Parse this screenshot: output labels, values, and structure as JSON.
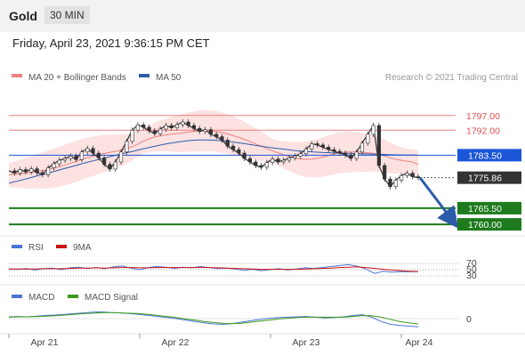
{
  "header": {
    "symbol": "Gold",
    "timeframe": "30 MIN",
    "datetime": "Friday, April 23, 2021 9:36:15 PM CET"
  },
  "credit": "Research © 2021 Trading Central",
  "chart_data": [
    {
      "type": "line",
      "panel": "price",
      "legend": [
        {
          "name": "MA 20 + Bollinger Bands",
          "color": "#f08080"
        },
        {
          "name": "MA 50",
          "color": "#2a5caa"
        }
      ],
      "ylim": [
        1757,
        1806
      ],
      "levels": [
        {
          "value": 1797.0,
          "label": "1797.00",
          "kind": "resistance",
          "color": "#e05050"
        },
        {
          "value": 1792.0,
          "label": "1792.00",
          "kind": "resistance",
          "color": "#e05050"
        },
        {
          "value": 1783.5,
          "label": "1783.50",
          "kind": "pivot",
          "color": "#1a56d6"
        },
        {
          "value": 1775.86,
          "label": "1775.86",
          "kind": "last",
          "color": "#333333"
        },
        {
          "value": 1765.5,
          "label": "1765.50",
          "kind": "support",
          "color": "#1e7b1e"
        },
        {
          "value": 1760.0,
          "label": "1760.00",
          "kind": "support",
          "color": "#1e7b1e"
        }
      ],
      "arrow": {
        "from": 1775.86,
        "to": 1761.5,
        "direction": "down",
        "color": "#2a5caa"
      },
      "series": [
        {
          "name": "price",
          "color": "#333333",
          "values": [
            1778.2,
            1777.4,
            1778.6,
            1777.8,
            1778.9,
            1777.6,
            1776.9,
            1779.2,
            1780.6,
            1781.8,
            1782.4,
            1783.2,
            1782.0,
            1784.6,
            1785.8,
            1784.2,
            1782.6,
            1780.4,
            1778.8,
            1781.2,
            1784.6,
            1788.2,
            1792.0,
            1793.8,
            1793.0,
            1791.8,
            1790.8,
            1792.4,
            1793.6,
            1792.8,
            1793.9,
            1794.8,
            1793.6,
            1792.6,
            1791.6,
            1792.2,
            1790.6,
            1789.8,
            1788.6,
            1786.6,
            1785.4,
            1784.2,
            1782.4,
            1781.2,
            1780.0,
            1779.4,
            1781.0,
            1782.2,
            1781.2,
            1781.8,
            1782.6,
            1783.2,
            1784.0,
            1785.6,
            1787.4,
            1787.0,
            1786.2,
            1785.4,
            1784.8,
            1784.2,
            1783.6,
            1782.4,
            1784.6,
            1787.6,
            1790.6,
            1793.6,
            1780.0,
            1775.4,
            1772.8,
            1775.0,
            1776.6,
            1777.4,
            1776.2,
            1775.86
          ]
        },
        {
          "name": "MA 20",
          "color": "#f08080",
          "values": [
            1776.8,
            1777.0,
            1777.3,
            1777.6,
            1778.0,
            1778.4,
            1778.9,
            1779.5,
            1780.2,
            1781.0,
            1781.8,
            1782.6,
            1783.2,
            1783.8,
            1784.3,
            1784.8,
            1785.3,
            1786.0,
            1787.0,
            1788.2,
            1789.2,
            1789.9,
            1790.3,
            1790.6,
            1790.9,
            1791.2,
            1791.5,
            1791.7,
            1791.8,
            1791.7,
            1791.3,
            1790.7,
            1790.0,
            1789.2,
            1788.3,
            1787.3,
            1786.3,
            1785.3,
            1784.4,
            1783.6,
            1782.9,
            1782.3,
            1782.1,
            1782.2,
            1782.6,
            1783.2,
            1783.9,
            1784.4,
            1784.6,
            1784.6,
            1784.5,
            1784.3,
            1784.0,
            1783.4,
            1782.6,
            1782.0,
            1781.6,
            1781.3,
            1780.4
          ]
        },
        {
          "name": "MA 50",
          "color": "#2a5caa",
          "values": [
            1774.0,
            1774.8,
            1775.6,
            1776.5,
            1777.3,
            1778.2,
            1779.1,
            1780.0,
            1780.9,
            1781.7,
            1782.5,
            1783.3,
            1784.1,
            1784.8,
            1785.6,
            1786.3,
            1787.0,
            1787.6,
            1788.1,
            1788.5,
            1788.7,
            1788.7,
            1788.5,
            1788.2,
            1787.8,
            1787.3,
            1786.8,
            1786.3,
            1785.9,
            1785.5,
            1785.1,
            1784.8,
            1784.6,
            1784.4,
            1784.3,
            1784.2,
            1784.1,
            1784.0,
            1783.9,
            1783.8,
            1783.7,
            1783.6,
            1783.6,
            1783.5
          ]
        }
      ]
    },
    {
      "type": "line",
      "panel": "rsi",
      "legend": [
        {
          "name": "RSI",
          "color": "#4a74d6"
        },
        {
          "name": "9MA",
          "color": "#cc1111"
        }
      ],
      "ylim": [
        0,
        100
      ],
      "levels": [
        {
          "value": 70,
          "label": "70"
        },
        {
          "value": 50,
          "label": "50"
        },
        {
          "value": 30,
          "label": "30"
        }
      ],
      "series": [
        {
          "name": "RSI",
          "values": [
            52,
            51,
            54,
            49,
            53,
            55,
            50,
            56,
            58,
            54,
            57,
            53,
            59,
            62,
            55,
            50,
            57,
            60,
            58,
            54,
            58,
            56,
            60,
            57,
            53,
            55,
            52,
            48,
            51,
            47,
            50,
            53,
            49,
            52,
            56,
            54,
            57,
            60,
            63,
            66,
            61,
            52,
            38,
            45,
            42,
            44,
            43,
            44
          ]
        },
        {
          "name": "9MA",
          "values": [
            52,
            52,
            52,
            52,
            53,
            53,
            53,
            54,
            55,
            55,
            56,
            55,
            56,
            57,
            57,
            56,
            56,
            57,
            57,
            57,
            57,
            57,
            57,
            57,
            56,
            55,
            54,
            53,
            52,
            51,
            51,
            51,
            51,
            51,
            52,
            53,
            54,
            55,
            57,
            58,
            59,
            57,
            54,
            51,
            49,
            47,
            45,
            44
          ]
        }
      ]
    },
    {
      "type": "line",
      "panel": "macd",
      "legend": [
        {
          "name": "MACD",
          "color": "#4a74d6"
        },
        {
          "name": "MACD Signal",
          "color": "#3a9a1a"
        }
      ],
      "ylim": [
        -5,
        5
      ],
      "levels": [
        {
          "value": 0,
          "label": "0"
        }
      ],
      "x_ticks": [
        "Apr 21",
        "Apr 22",
        "Apr 23",
        "Apr 24"
      ],
      "series": [
        {
          "name": "MACD",
          "values": [
            0.5,
            0.6,
            0.5,
            0.7,
            0.9,
            1.0,
            1.2,
            1.4,
            1.6,
            1.8,
            1.9,
            1.7,
            1.6,
            1.4,
            1.2,
            0.9,
            0.6,
            0.3,
            0.0,
            -0.4,
            -0.8,
            -1.2,
            -1.5,
            -1.6,
            -1.4,
            -1.0,
            -0.6,
            -0.2,
            0.1,
            0.3,
            0.4,
            0.5,
            0.6,
            0.4,
            0.2,
            0.3,
            0.5,
            0.9,
            1.1,
            0.4,
            -0.8,
            -1.6,
            -1.9,
            -2.1,
            -2.3
          ]
        },
        {
          "name": "MACD Signal",
          "values": [
            0.4,
            0.5,
            0.5,
            0.6,
            0.7,
            0.8,
            1.0,
            1.2,
            1.4,
            1.5,
            1.7,
            1.7,
            1.6,
            1.5,
            1.4,
            1.2,
            0.9,
            0.6,
            0.3,
            -0.1,
            -0.4,
            -0.8,
            -1.1,
            -1.3,
            -1.4,
            -1.3,
            -1.0,
            -0.7,
            -0.4,
            -0.1,
            0.1,
            0.3,
            0.4,
            0.4,
            0.4,
            0.4,
            0.4,
            0.6,
            0.8,
            0.8,
            0.4,
            -0.2,
            -0.8,
            -1.2,
            -1.5
          ]
        }
      ]
    }
  ]
}
